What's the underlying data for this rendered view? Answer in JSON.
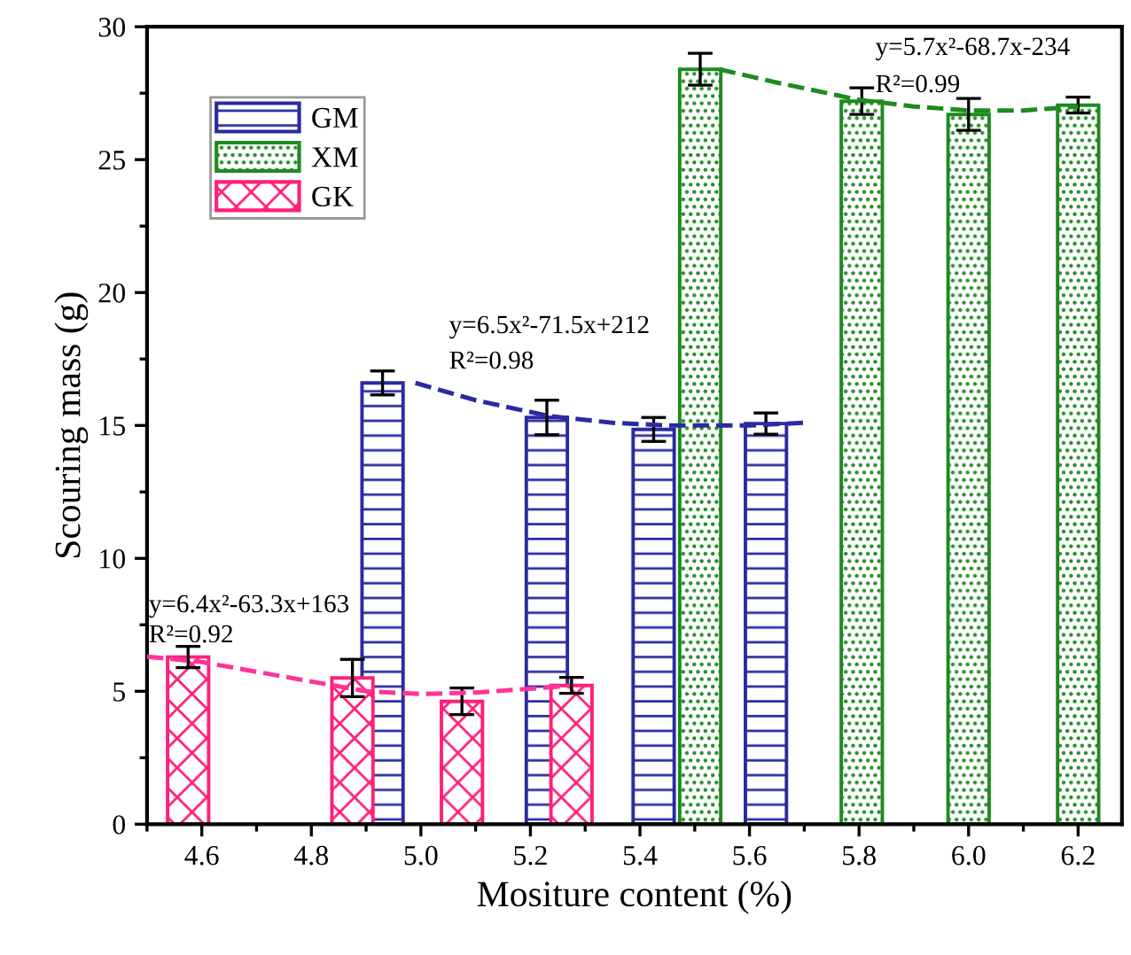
{
  "chart_data": {
    "type": "bar",
    "xlabel": "Mositure content (%)",
    "ylabel": "Scouring mass (g)",
    "xlim": [
      4.5,
      6.28
    ],
    "xticks": [
      4.6,
      4.8,
      {
        "value": 5.0,
        "label": "5.0"
      },
      5.2,
      5.4,
      5.6,
      5.8,
      {
        "value": 6.0,
        "label": "6.0"
      },
      6.2
    ],
    "ylim": [
      0,
      30
    ],
    "yticks": [
      0,
      5,
      10,
      15,
      20,
      25,
      30
    ],
    "legend": "top left",
    "grid": false,
    "series": [
      {
        "name": "GM",
        "color": "#2b2ba0",
        "x": [
          4.93,
          5.23,
          5.425,
          5.63
        ],
        "values": [
          16.6,
          15.3,
          14.85,
          15.07
        ],
        "errors": [
          0.45,
          0.65,
          0.45,
          0.4
        ]
      },
      {
        "name": "XM",
        "color": "#1f8a1f",
        "x": [
          5.51,
          5.805,
          6.0,
          6.2
        ],
        "values": [
          28.4,
          27.2,
          26.7,
          27.05
        ],
        "errors": [
          0.6,
          0.5,
          0.6,
          0.3
        ]
      },
      {
        "name": "GK",
        "color": "#ff1f7a",
        "x": [
          4.575,
          4.875,
          5.075,
          5.275
        ],
        "values": [
          6.29,
          5.5,
          4.62,
          5.22
        ],
        "errors": [
          0.4,
          0.7,
          0.5,
          0.3
        ]
      },
      {
        "type": "line",
        "line_style": "dashed",
        "color": "#ff3399",
        "x": [
          4.5,
          4.6,
          4.75,
          4.9,
          5.0,
          5.1,
          5.27
        ],
        "values": [
          6.3,
          6.1,
          5.55,
          5.0,
          4.9,
          4.95,
          5.2
        ]
      },
      {
        "type": "line",
        "line_style": "dashed",
        "color": "#2b2ba0",
        "x": [
          4.99,
          5.1,
          5.235,
          5.35,
          5.45,
          5.6,
          5.7
        ],
        "values": [
          16.6,
          15.95,
          15.35,
          15.1,
          15.0,
          15.0,
          15.1
        ]
      },
      {
        "type": "line",
        "line_style": "dashed",
        "color": "#1f8a1f",
        "x": [
          5.545,
          5.65,
          5.8,
          5.9,
          6.0,
          6.1,
          6.2
        ],
        "values": [
          28.4,
          27.9,
          27.25,
          27.0,
          26.85,
          26.85,
          27.0
        ]
      }
    ],
    "annotations": [
      "y=6.4x²-63.3x+163",
      "R²=0.92",
      "y=6.5x²-71.5x+212",
      "R²=0.98",
      "y=5.7x²-68.7x-234",
      "R²=0.99"
    ]
  }
}
